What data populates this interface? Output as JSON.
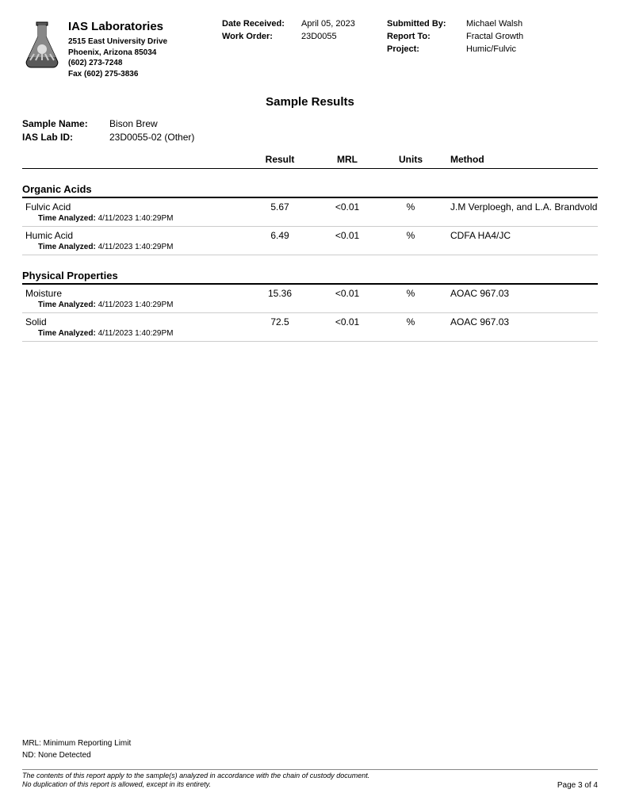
{
  "company": {
    "name": "IAS Laboratories",
    "address1": "2515 East University Drive",
    "address2": "Phoenix, Arizona 85034",
    "phone": "(602) 273-7248",
    "fax": "Fax (602) 275-3836"
  },
  "meta": {
    "date_received_label": "Date Received:",
    "date_received": "April 05, 2023",
    "work_order_label": "Work Order:",
    "work_order": "23D0055",
    "submitted_by_label": "Submitted By:",
    "submitted_by": "Michael Walsh",
    "report_to_label": "Report To:",
    "report_to": "Fractal Growth",
    "project_label": "Project:",
    "project": "Humic/Fulvic"
  },
  "report_title": "Sample Results",
  "sample": {
    "name_label": "Sample Name:",
    "name": "Bison Brew",
    "id_label": "IAS Lab ID:",
    "id": "23D0055-02 (Other)"
  },
  "columns": {
    "result": "Result",
    "mrl": "MRL",
    "units": "Units",
    "method": "Method"
  },
  "time_analyzed_label": "Time Analyzed:",
  "sections": [
    {
      "title": "Organic Acids",
      "rows": [
        {
          "name": "Fulvic Acid",
          "result": "5.67",
          "mrl": "<0.01",
          "units": "%",
          "method": "J.M Verploegh, and L.A. Brandvold",
          "time": "4/11/2023   1:40:29PM"
        },
        {
          "name": "Humic Acid",
          "result": "6.49",
          "mrl": "<0.01",
          "units": "%",
          "method": "CDFA HA4/JC",
          "time": "4/11/2023   1:40:29PM"
        }
      ]
    },
    {
      "title": "Physical Properties",
      "rows": [
        {
          "name": "Moisture",
          "result": "15.36",
          "mrl": "<0.01",
          "units": "%",
          "method": "AOAC 967.03",
          "time": "4/11/2023   1:40:29PM"
        },
        {
          "name": "Solid",
          "result": "72.5",
          "mrl": "<0.01",
          "units": "%",
          "method": "AOAC 967.03",
          "time": "4/11/2023   1:40:29PM"
        }
      ]
    }
  ],
  "footer": {
    "mrl_note": "MRL: Minimum Reporting Limit",
    "nd_note": "ND: None Detected",
    "disclaimer1": "The contents of this report apply to the sample(s) analyzed in accordance with the chain of custody document.",
    "disclaimer2": "No duplication of this report is allowed, except in its entirety.",
    "page": "Page 3 of 4"
  }
}
